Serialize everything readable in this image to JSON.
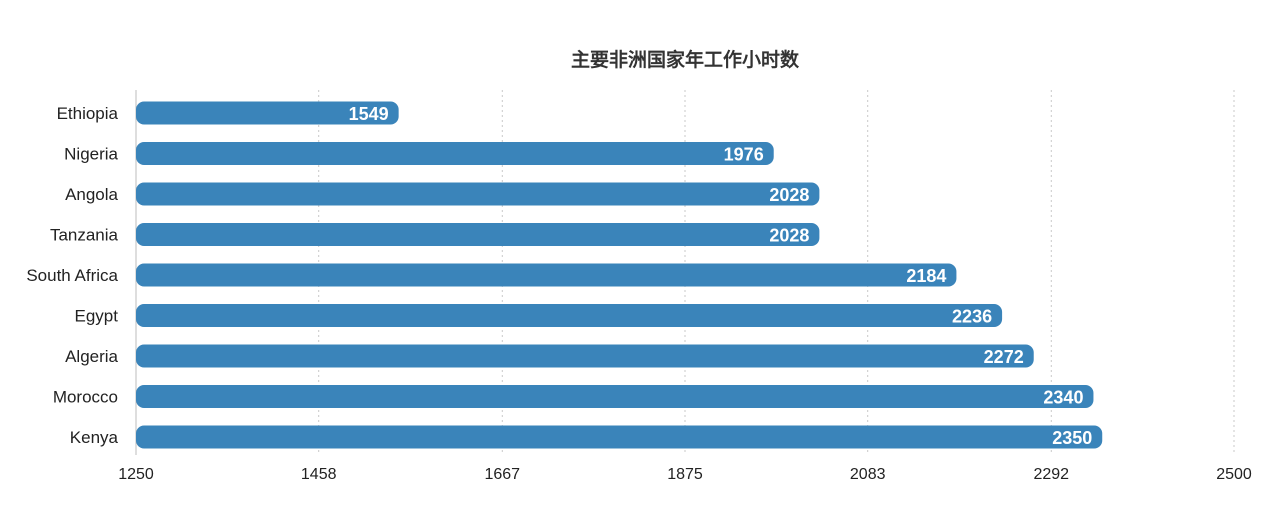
{
  "chart_data": {
    "type": "bar",
    "orientation": "horizontal",
    "title": "主要非洲国家年工作小时数",
    "categories": [
      "Ethiopia",
      "Nigeria",
      "Angola",
      "Tanzania",
      "South Africa",
      "Egypt",
      "Algeria",
      "Morocco",
      "Kenya"
    ],
    "values": [
      1549,
      1976,
      2028,
      2028,
      2184,
      2236,
      2272,
      2340,
      2350
    ],
    "xlim": [
      1250,
      2500
    ],
    "xticks": [
      "1250",
      "1458",
      "1667",
      "1875",
      "2083",
      "2292",
      "2500"
    ],
    "grid": true,
    "data_labels": true,
    "colors": {
      "bar": "#3a84ba",
      "label": "#ffffff",
      "text": "#222222",
      "grid": "#c8c8c8",
      "axis": "#bdbdbd"
    }
  }
}
